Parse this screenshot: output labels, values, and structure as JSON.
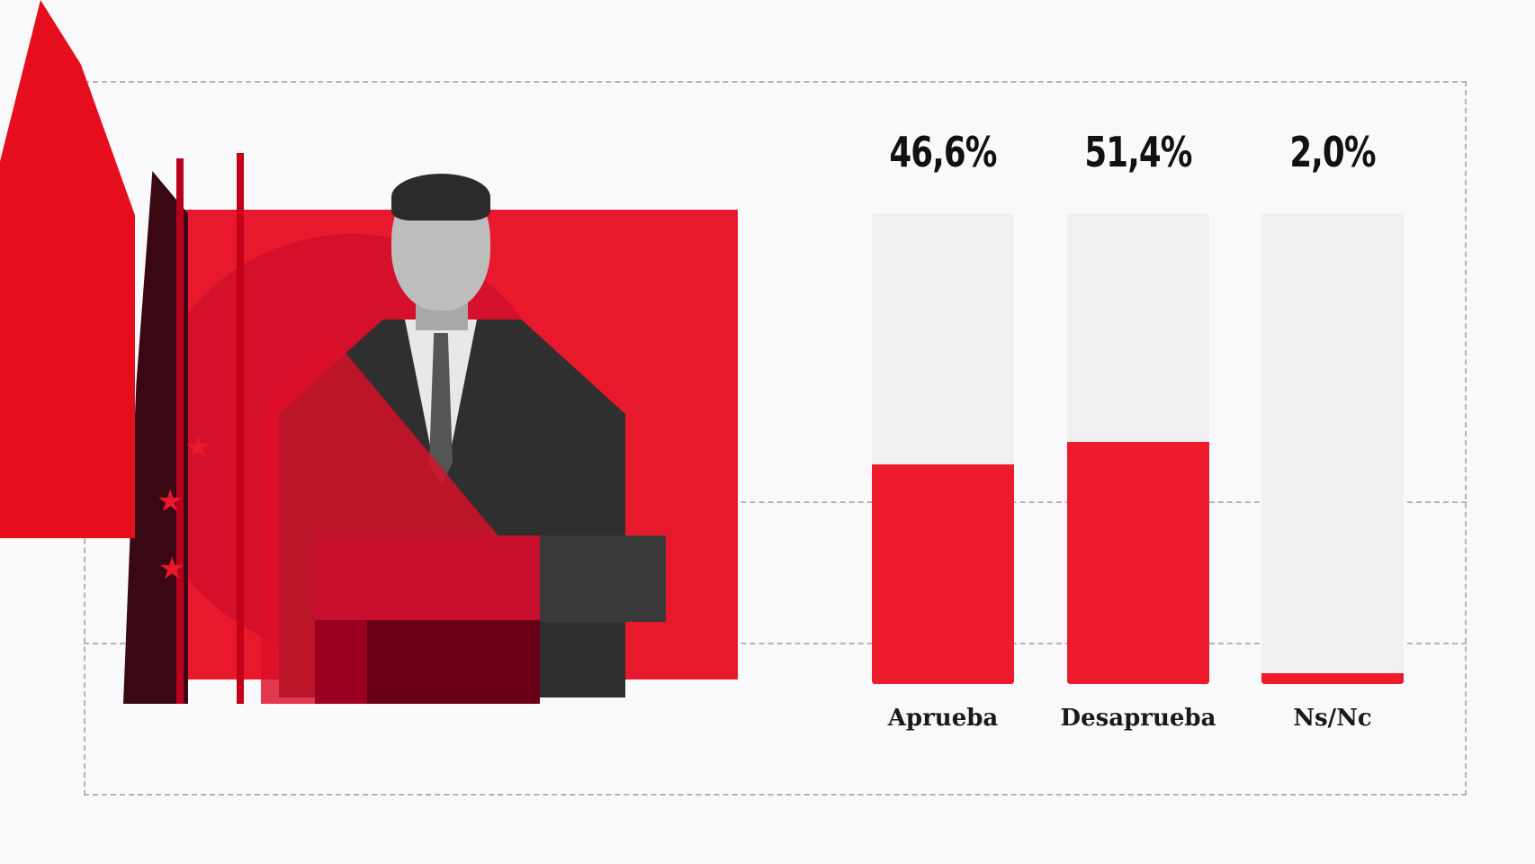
{
  "chart_data": {
    "type": "bar",
    "categories": [
      "Aprueba",
      "Desaprueba",
      "Ns/Nc"
    ],
    "values": [
      46.6,
      51.4,
      2.0
    ],
    "value_labels": [
      "46,6%",
      "51,4%",
      "2,0%"
    ],
    "title": "",
    "xlabel": "",
    "ylabel": "",
    "ylim": [
      0,
      100
    ],
    "grid": false,
    "colors": {
      "bar": "#ed1b2b",
      "track": "#f0f0f2"
    }
  }
}
